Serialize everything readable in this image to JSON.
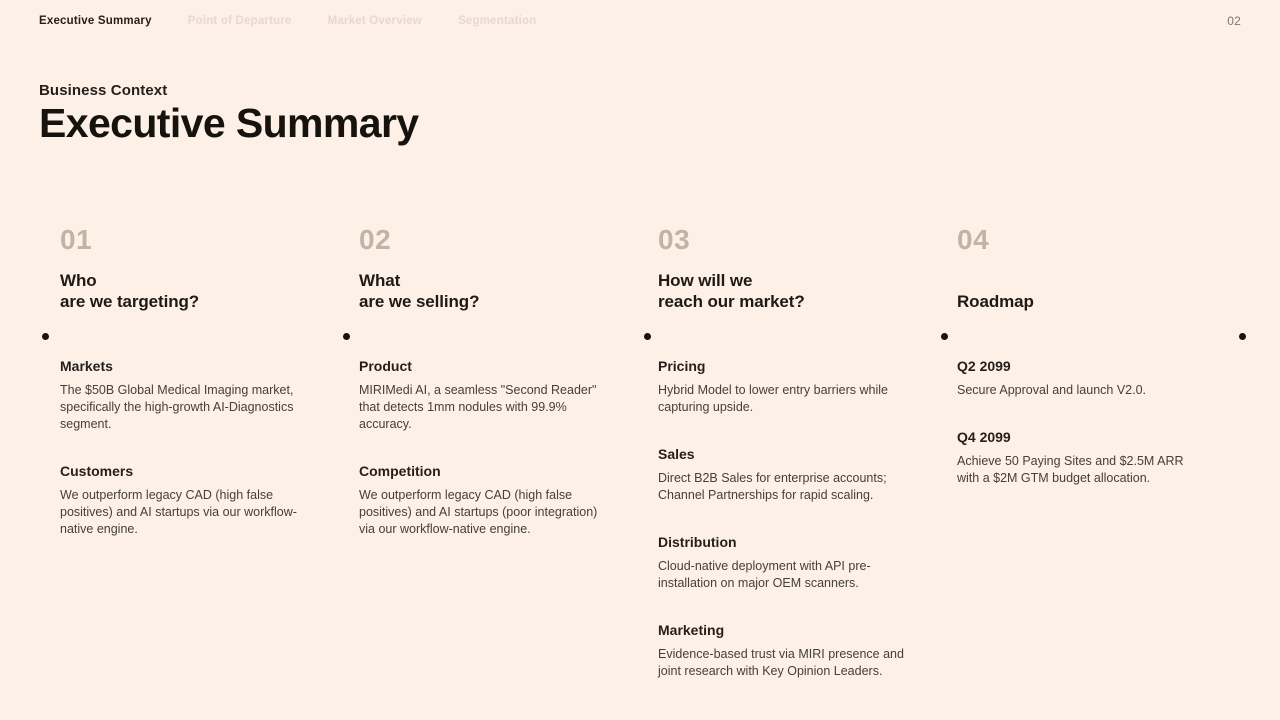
{
  "nav": {
    "items": [
      {
        "label": "Executive Summary",
        "active": true
      },
      {
        "label": "Point of Departure",
        "active": false
      },
      {
        "label": "Market Overview",
        "active": false
      },
      {
        "label": "Segmentation",
        "active": false
      }
    ],
    "page_number": "02"
  },
  "header": {
    "eyebrow": "Business Context",
    "title": "Executive Summary"
  },
  "colors": {
    "background": "#fcf0e7",
    "heading_text": "#241f1b",
    "body_text": "#44403b",
    "column_number": "#c2b3a6",
    "nav_inactive": "#ead8ce",
    "timeline_dot": "#161310"
  },
  "columns": [
    {
      "number": "01",
      "question": "Who\nare we targeting?",
      "sections": [
        {
          "heading": "Markets",
          "body": "The $50B Global Medical Imaging market, specifically the high-growth AI-Diagnostics segment."
        },
        {
          "heading": "Customers",
          "body": "We outperform legacy CAD (high false positives) and AI startups via our workflow-native engine."
        }
      ]
    },
    {
      "number": "02",
      "question": "What\nare we selling?",
      "sections": [
        {
          "heading": "Product",
          "body": "MIRIMedi AI, a seamless \"Second Reader\" that detects 1mm nodules with 99.9% accuracy."
        },
        {
          "heading": "Competition",
          "body": "We outperform legacy CAD (high false positives) and AI startups (poor integration) via our workflow-native engine."
        }
      ]
    },
    {
      "number": "03",
      "question": "How will we\nreach our market?",
      "sections": [
        {
          "heading": "Pricing",
          "body": "Hybrid Model to lower entry barriers while capturing upside."
        },
        {
          "heading": "Sales",
          "body": "Direct B2B Sales for enterprise accounts; Channel Partnerships for rapid scaling."
        },
        {
          "heading": "Distribution",
          "body": "Cloud-native deployment with API pre-installation on major OEM scanners."
        },
        {
          "heading": "Marketing",
          "body": "Evidence-based trust via MIRI presence and joint research with Key Opinion Leaders."
        }
      ]
    },
    {
      "number": "04",
      "question": "Roadmap",
      "sections": [
        {
          "heading": "Q2 2099",
          "body": "Secure Approval and launch V2.0."
        },
        {
          "heading": "Q4 2099",
          "body": "Achieve 50 Paying Sites and $2.5M ARR with a $2M GTM budget allocation."
        }
      ]
    }
  ]
}
